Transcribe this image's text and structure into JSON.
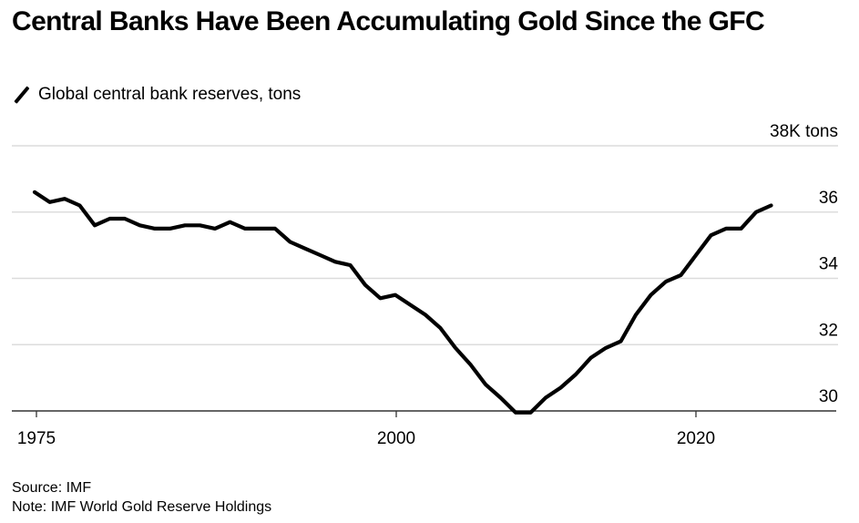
{
  "header": {
    "title": "Central Banks Have Been Accumulating Gold Since the GFC",
    "legend_label": "Global central bank reserves, tons"
  },
  "footer": {
    "source": "Source: IMF",
    "note": "Note: IMF World Gold Reserve Holdings"
  },
  "chart_data": {
    "type": "line",
    "title": "Central Banks Have Been Accumulating Gold Since the GFC",
    "subtitle": "Global central bank reserves, tons",
    "xlabel": "",
    "ylabel": "",
    "y_unit_label": "38K tons",
    "ylim": [
      30,
      38
    ],
    "xlim": [
      1975,
      2027
    ],
    "y_ticks": [
      30,
      32,
      34,
      36,
      38
    ],
    "y_tick_labels": [
      "30",
      "32",
      "34",
      "36",
      "38K tons"
    ],
    "x_ticks": [
      1975,
      2000,
      2020
    ],
    "x_tick_labels": [
      "1975",
      "2000",
      "2020"
    ],
    "grid": true,
    "y_axis_side": "right",
    "line_color": "#000000",
    "series": [
      {
        "name": "Global central bank reserves, tons",
        "x": [
          1975,
          1976,
          1977,
          1978,
          1979,
          1980,
          1981,
          1982,
          1983,
          1984,
          1985,
          1986,
          1987,
          1988,
          1989,
          1990,
          1991,
          1992,
          1993,
          1994,
          1995,
          1996,
          1997,
          1998,
          1999,
          2000,
          2001,
          2002,
          2003,
          2004,
          2005,
          2006,
          2007,
          2008,
          2009,
          2010,
          2011,
          2012,
          2013,
          2014,
          2015,
          2016,
          2017,
          2018,
          2019,
          2020,
          2021,
          2022,
          2023,
          2024
        ],
        "values": [
          36.6,
          36.3,
          36.4,
          36.2,
          35.6,
          35.8,
          35.8,
          35.6,
          35.5,
          35.5,
          35.6,
          35.6,
          35.5,
          35.7,
          35.5,
          35.5,
          35.5,
          35.1,
          34.9,
          34.7,
          34.5,
          34.4,
          33.8,
          33.4,
          33.5,
          33.2,
          32.9,
          32.5,
          31.9,
          31.4,
          30.8,
          30.4,
          29.95,
          29.95,
          30.4,
          30.7,
          31.1,
          31.6,
          31.9,
          32.1,
          32.9,
          33.5,
          33.9,
          34.1,
          34.7,
          35.3,
          35.5,
          35.5,
          36.0,
          36.2
        ]
      }
    ]
  }
}
